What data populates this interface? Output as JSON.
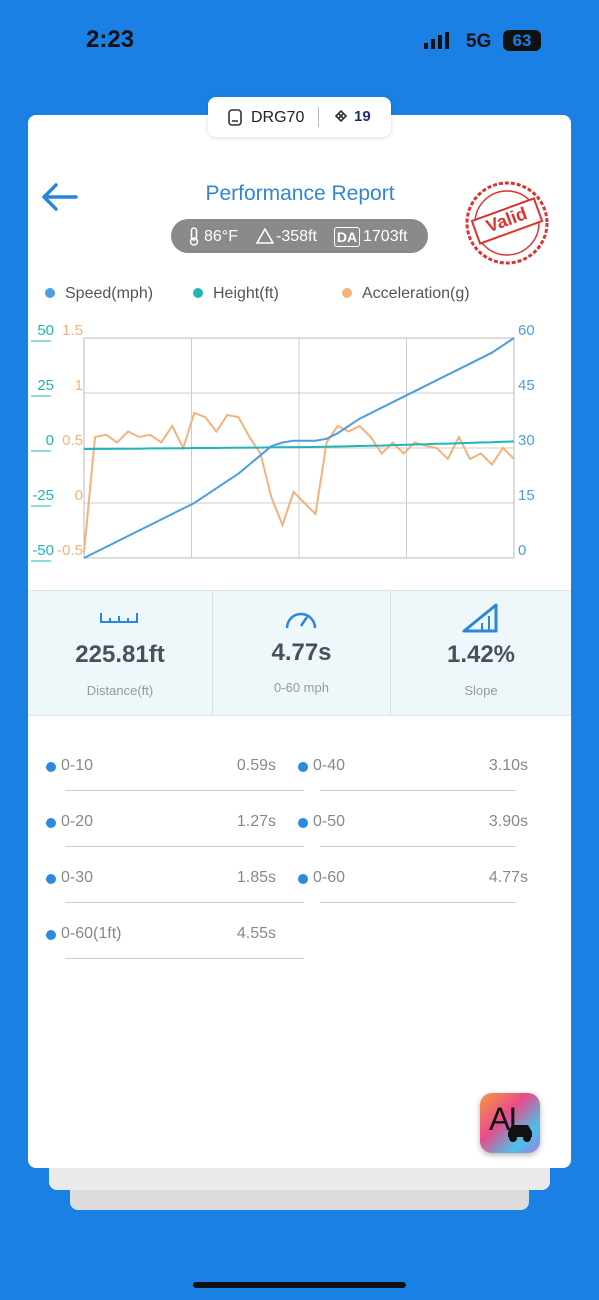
{
  "status_bar": {
    "time": "2:23",
    "network": "5G",
    "battery": "63"
  },
  "device": {
    "name": "DRG70",
    "satellites": "19"
  },
  "header": {
    "title": "Performance Report",
    "stamp": "Valid"
  },
  "conditions": {
    "temperature": "86°F",
    "altitude": "-358ft",
    "da_label": "DA",
    "density_altitude": "1703ft"
  },
  "chart_data": {
    "type": "line",
    "legend": "top",
    "grid": true,
    "series": [
      {
        "name": "Speed(mph)",
        "color": "#4b9ee0",
        "axis": "y2",
        "ylim": [
          0,
          60
        ],
        "yticks": [
          0,
          15,
          30,
          45,
          60
        ],
        "values": [
          0,
          1.5,
          3,
          4.5,
          6,
          7.5,
          9,
          10.5,
          12,
          13.5,
          15,
          17,
          19,
          21,
          23,
          25.5,
          28,
          30.5,
          31.5,
          32,
          32,
          32,
          32.5,
          34,
          36,
          38,
          39.5,
          41,
          42.5,
          44,
          45.5,
          47,
          48.5,
          50,
          51.5,
          53,
          54.5,
          56,
          58,
          60
        ]
      },
      {
        "name": "Height(ft)",
        "color": "#22b5b5",
        "axis": "y",
        "ylim": [
          -50,
          50
        ],
        "yticks": [
          -50,
          -25,
          0,
          25,
          50
        ],
        "values": [
          -0.5,
          -0.4,
          -0.4,
          -0.3,
          -0.3,
          -0.3,
          -0.2,
          -0.2,
          -0.1,
          -0.1,
          0,
          0,
          0,
          0.1,
          0.1,
          0.2,
          0.2,
          0.3,
          0.3,
          0.4,
          0.4,
          0.5,
          0.6,
          0.7,
          0.8,
          0.9,
          1,
          1.1,
          1.3,
          1.4,
          1.6,
          1.7,
          1.9,
          2,
          2.2,
          2.3,
          2.5,
          2.6,
          2.8,
          3
        ]
      },
      {
        "name": "Acceleration(g)",
        "color": "#f3b27c",
        "axis": "y3",
        "ylim": [
          -0.5,
          1.5
        ],
        "yticks": [
          -0.5,
          0,
          0.5,
          1,
          1.5
        ],
        "values": [
          -0.45,
          0.6,
          0.62,
          0.55,
          0.65,
          0.6,
          0.62,
          0.55,
          0.7,
          0.5,
          0.82,
          0.78,
          0.65,
          0.8,
          0.78,
          0.6,
          0.45,
          0.05,
          -0.2,
          0.1,
          0,
          -0.1,
          0.55,
          0.7,
          0.65,
          0.7,
          0.6,
          0.45,
          0.55,
          0.45,
          0.55,
          0.52,
          0.5,
          0.4,
          0.6,
          0.4,
          0.45,
          0.35,
          0.5,
          0.4
        ]
      }
    ]
  },
  "stats": [
    {
      "value": "225.81ft",
      "label": "Distance(ft)"
    },
    {
      "value": "4.77s",
      "label": "0-60 mph"
    },
    {
      "value": "1.42%",
      "label": "Slope"
    }
  ],
  "times": {
    "left": [
      {
        "label": "0-10",
        "value": "0.59s"
      },
      {
        "label": "0-20",
        "value": "1.27s"
      },
      {
        "label": "0-30",
        "value": "1.85s"
      },
      {
        "label": "0-60(1ft)",
        "value": "4.55s"
      }
    ],
    "right": [
      {
        "label": "0-40",
        "value": "3.10s"
      },
      {
        "label": "0-50",
        "value": "3.90s"
      },
      {
        "label": "0-60",
        "value": "4.77s"
      }
    ]
  },
  "badge": {
    "text": "AI"
  }
}
